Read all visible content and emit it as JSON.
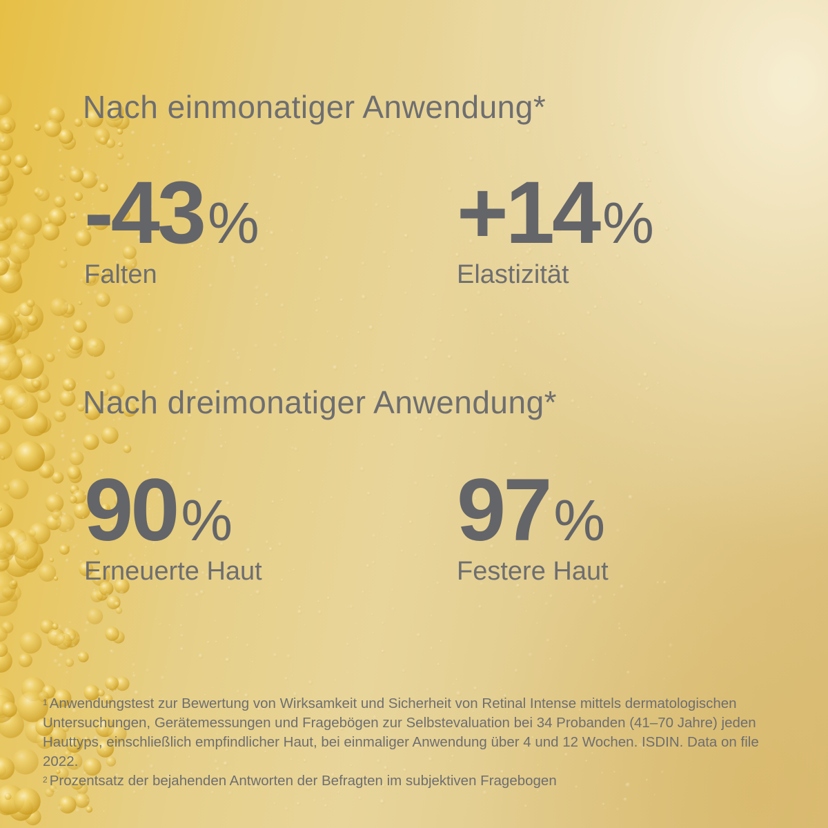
{
  "sections": [
    {
      "heading": "Nach einmonatiger Anwendung*",
      "stats": [
        {
          "value": "-43",
          "unit": "%",
          "label": "Falten"
        },
        {
          "value": "+14",
          "unit": "%",
          "label": "Elastizität"
        }
      ]
    },
    {
      "heading": "Nach dreimonatiger Anwendung*",
      "stats": [
        {
          "value": "90",
          "unit": "%",
          "label": "Erneuerte Haut"
        },
        {
          "value": "97",
          "unit": "%",
          "label": "Festere Haut"
        }
      ]
    }
  ],
  "footnotes": [
    {
      "marker": "1",
      "text": "Anwendungstest zur Bewertung von Wirksamkeit und Sicherheit von Retinal Intense mittels dermatologischen Untersuchungen, Gerätemessungen und Fragebögen zur Selbstevaluation bei 34 Probanden (41–70 Jahre) jeden Hauttyps, einschließlich empfindlicher Haut, bei einmaliger Anwendung über 4 und 12 Wochen. ISDIN. Data on file 2022."
    },
    {
      "marker": "2",
      "text": "Prozentsatz der bejahenden Antworten der Befragten im subjektiven Fragebogen"
    }
  ],
  "colors": {
    "text": "#6e6e70",
    "numbers": "#646569",
    "background_gold": "#e6bf45",
    "background_light": "#f0e6c4"
  }
}
